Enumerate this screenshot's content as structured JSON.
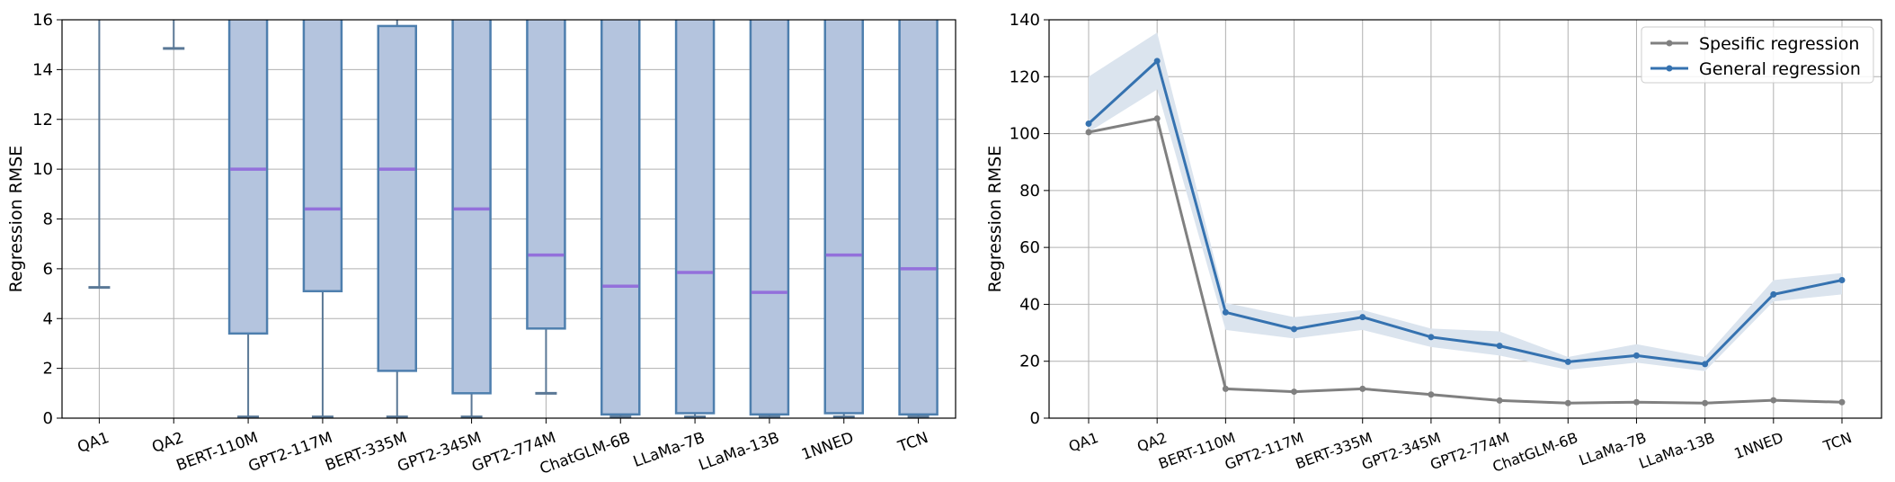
{
  "chart_data": [
    {
      "type": "box",
      "ylabel": "Regression RMSE",
      "ylim": [
        0,
        16
      ],
      "yticks": [
        0,
        2,
        4,
        6,
        8,
        10,
        12,
        14,
        16
      ],
      "grid": true,
      "categories": [
        "QA1",
        "QA2",
        "BERT-110M",
        "GPT2-117M",
        "BERT-335M",
        "GPT2-345M",
        "GPT2-774M",
        "ChatGLM-6B",
        "LLaMa-7B",
        "LLaMa-13B",
        "1NNED",
        "TCN"
      ],
      "boxes": [
        {
          "whisker_low": 5.25,
          "q1": null,
          "median": null,
          "q3": null,
          "whisker_high": 16,
          "cap_high_visible": false
        },
        {
          "whisker_low": 14.85,
          "q1": null,
          "median": null,
          "q3": null,
          "whisker_high": 16,
          "cap_high_visible": false
        },
        {
          "whisker_low": 0.05,
          "q1": 3.4,
          "median": 10.0,
          "q3": 16,
          "whisker_high": null,
          "cap_high_visible": false
        },
        {
          "whisker_low": 0.05,
          "q1": 5.1,
          "median": 8.4,
          "q3": 16,
          "whisker_high": null,
          "cap_high_visible": false
        },
        {
          "whisker_low": 0.05,
          "q1": 1.9,
          "median": 10.0,
          "q3": 15.75,
          "whisker_high": 16,
          "cap_high_visible": false
        },
        {
          "whisker_low": 0.05,
          "q1": 1.0,
          "median": 8.4,
          "q3": 16,
          "whisker_high": null,
          "cap_high_visible": false
        },
        {
          "whisker_low": 1.0,
          "q1": 3.6,
          "median": 6.55,
          "q3": 16,
          "whisker_high": null,
          "cap_high_visible": false
        },
        {
          "whisker_low": 0.05,
          "q1": 0.15,
          "median": 5.3,
          "q3": 16,
          "whisker_high": null,
          "cap_high_visible": false
        },
        {
          "whisker_low": 0.05,
          "q1": 0.2,
          "median": 5.85,
          "q3": 16,
          "whisker_high": null,
          "cap_high_visible": false
        },
        {
          "whisker_low": 0.05,
          "q1": 0.15,
          "median": 5.05,
          "q3": 16,
          "whisker_high": null,
          "cap_high_visible": false
        },
        {
          "whisker_low": 0.05,
          "q1": 0.2,
          "median": 6.55,
          "q3": 16,
          "whisker_high": null,
          "cap_high_visible": false
        },
        {
          "whisker_low": 0.05,
          "q1": 0.15,
          "median": 6.0,
          "q3": 16,
          "whisker_high": null,
          "cap_high_visible": false
        }
      ],
      "colors": {
        "box_fill": "#b4c4de",
        "box_edge": "#4e7fae",
        "median": "#9370db",
        "whisker": "#5a7896"
      }
    },
    {
      "type": "line",
      "ylabel": "Regression RMSE",
      "ylim": [
        0,
        140
      ],
      "yticks": [
        0,
        20,
        40,
        60,
        80,
        100,
        120,
        140
      ],
      "grid": true,
      "legend_position": "top-right",
      "categories": [
        "QA1",
        "QA2",
        "BERT-110M",
        "GPT2-117M",
        "BERT-335M",
        "GPT2-345M",
        "GPT2-774M",
        "ChatGLM-6B",
        "LLaMa-7B",
        "LLaMa-13B",
        "1NNED",
        "TCN"
      ],
      "series": [
        {
          "name": "Spesific regression",
          "color": "#808080",
          "values": [
            100.5,
            105.3,
            10.3,
            9.3,
            10.3,
            8.3,
            6.2,
            5.3,
            5.6,
            5.3,
            6.3,
            5.6
          ]
        },
        {
          "name": "General regression",
          "color": "#3572b0",
          "values": [
            103.5,
            125.5,
            37.2,
            31.3,
            35.5,
            28.5,
            25.4,
            19.8,
            22.0,
            19.0,
            43.5,
            48.5
          ],
          "band_low": [
            100.5,
            115.5,
            31.0,
            28.0,
            31.0,
            25.0,
            22.0,
            17.0,
            19.5,
            16.5,
            41.0,
            43.5
          ],
          "band_high": [
            120.0,
            135.5,
            40.5,
            35.5,
            38.0,
            31.5,
            30.5,
            21.5,
            26.0,
            21.5,
            48.5,
            51.0
          ],
          "band_color": "#dbe4ee"
        }
      ]
    }
  ]
}
